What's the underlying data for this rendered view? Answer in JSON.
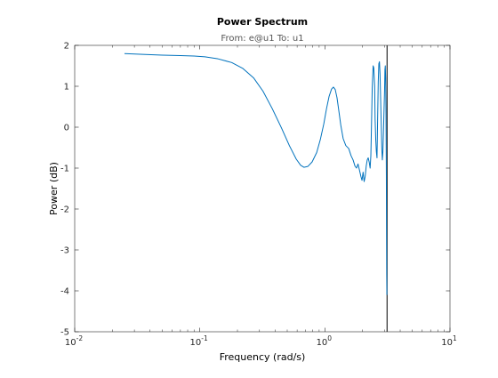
{
  "chart_data": {
    "type": "line",
    "title": "Power Spectrum",
    "subtitle": "From: e@u1   To: u1",
    "xlabel": "Frequency  (rad/s)",
    "ylabel": "Power (dB)",
    "xscale": "log",
    "xlim": [
      0.01,
      10
    ],
    "ylim": [
      -5,
      2
    ],
    "grid": false,
    "x_major_ticks": [
      0.01,
      0.1,
      1,
      10
    ],
    "x_tick_labels": [
      {
        "base": "10",
        "exp": "-2"
      },
      {
        "base": "10",
        "exp": "-1"
      },
      {
        "base": "10",
        "exp": "0"
      },
      {
        "base": "10",
        "exp": "1"
      }
    ],
    "y_ticks": [
      2,
      1,
      0,
      -1,
      -2,
      -3,
      -4,
      -5
    ],
    "y_tick_labels": [
      "2",
      "1",
      "0",
      "-1",
      "-2",
      "-3",
      "-4",
      "-5"
    ],
    "nyquist_line_x": 3.14,
    "colors": {
      "line": "#0072bd",
      "nyquist": "#000000",
      "axes": "#262626"
    },
    "series": [
      {
        "x": [
          0.025,
          0.035,
          0.05,
          0.07,
          0.09,
          0.11,
          0.14,
          0.18,
          0.22,
          0.27,
          0.32,
          0.38,
          0.45,
          0.52,
          0.59,
          0.64,
          0.68,
          0.73,
          0.79,
          0.86,
          0.92,
          0.98,
          1.03,
          1.08,
          1.13,
          1.17,
          1.21,
          1.25,
          1.29,
          1.34,
          1.4,
          1.47,
          1.55,
          1.62,
          1.68,
          1.74,
          1.79,
          1.84,
          1.89,
          1.94,
          1.98,
          2.02,
          2.06,
          2.1,
          2.14,
          2.18,
          2.22,
          2.26,
          2.3,
          2.33,
          2.36,
          2.39,
          2.43,
          2.46,
          2.5,
          2.52,
          2.55,
          2.58,
          2.61,
          2.64,
          2.67,
          2.7,
          2.73,
          2.76,
          2.79,
          2.82,
          2.85,
          2.88,
          2.91,
          2.94,
          2.97,
          3.0,
          3.02,
          3.04,
          3.06,
          3.08,
          3.1,
          3.11,
          3.12,
          3.13
        ],
        "y": [
          1.8,
          1.78,
          1.76,
          1.75,
          1.74,
          1.72,
          1.67,
          1.58,
          1.44,
          1.2,
          0.88,
          0.45,
          -0.02,
          -0.45,
          -0.78,
          -0.93,
          -0.98,
          -0.96,
          -0.85,
          -0.62,
          -0.3,
          0.08,
          0.45,
          0.75,
          0.93,
          0.98,
          0.92,
          0.72,
          0.42,
          0.05,
          -0.28,
          -0.45,
          -0.52,
          -0.7,
          -0.8,
          -0.95,
          -1.0,
          -0.9,
          -1.05,
          -1.2,
          -1.3,
          -1.1,
          -1.33,
          -1.2,
          -0.95,
          -0.8,
          -0.75,
          -0.85,
          -1.0,
          -0.7,
          0.1,
          0.95,
          1.5,
          1.45,
          1.0,
          0.2,
          -0.3,
          -0.6,
          -0.75,
          0.2,
          1.1,
          1.55,
          1.6,
          1.3,
          0.7,
          0.1,
          -0.5,
          -0.8,
          -0.6,
          -0.1,
          0.4,
          0.9,
          1.4,
          1.5,
          1.2,
          0.3,
          -1.2,
          -2.5,
          -3.6,
          -4.1
        ]
      }
    ]
  }
}
